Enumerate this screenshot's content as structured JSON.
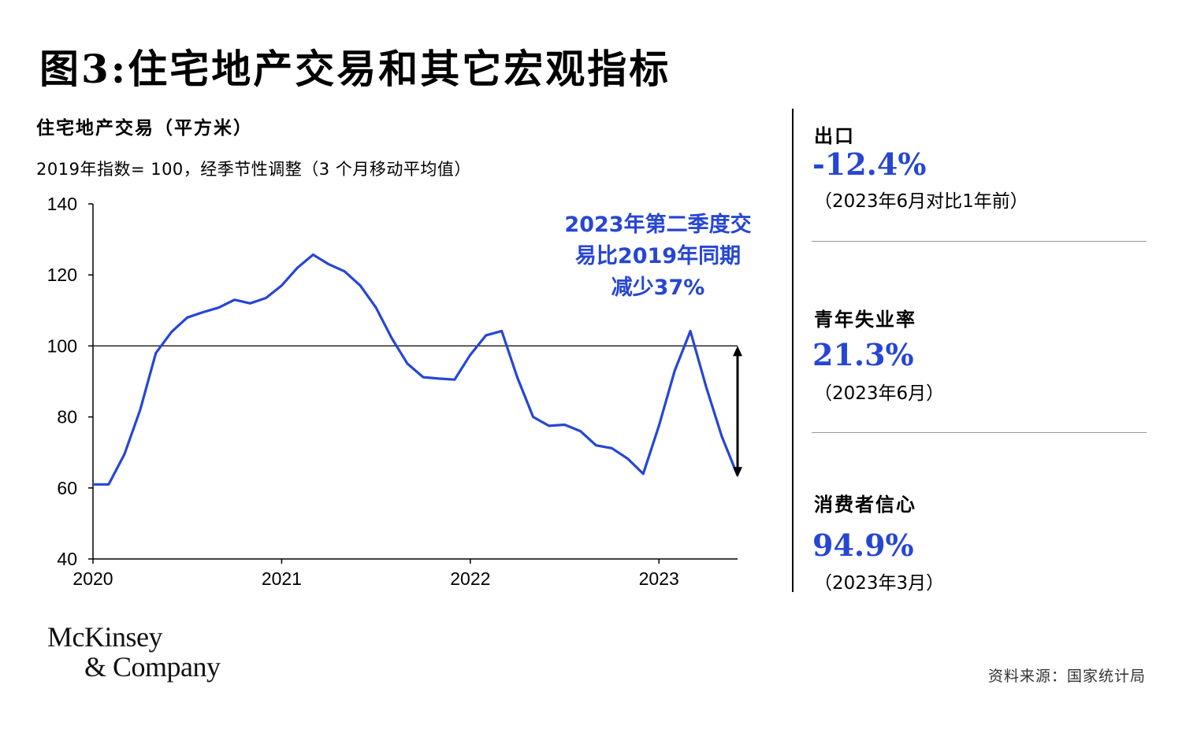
{
  "figure_title": "图3:住宅地产交易和其它宏观指标",
  "chart_data": {
    "type": "line",
    "title": "住宅地产交易（平方米）",
    "subtitle": "2019年指数= 100，经季节性调整（3 个月移动平均值）",
    "x_tick_labels": [
      "2020",
      "2021",
      "2022",
      "2023"
    ],
    "y_tick_labels": [
      "140",
      "120",
      "100",
      "80",
      "60",
      "40"
    ],
    "ylim": [
      40,
      140
    ],
    "xlim": [
      2020.0,
      2023.4167
    ],
    "reference_line": 100,
    "grid": false,
    "series": [
      {
        "color": "#2646d4",
        "x": [
          2020.0,
          2020.0833,
          2020.1667,
          2020.25,
          2020.3333,
          2020.4167,
          2020.5,
          2020.5833,
          2020.6667,
          2020.75,
          2020.8333,
          2020.9167,
          2021.0,
          2021.0833,
          2021.1667,
          2021.25,
          2021.3333,
          2021.4167,
          2021.5,
          2021.5833,
          2021.6667,
          2021.75,
          2021.8333,
          2021.9167,
          2022.0,
          2022.0833,
          2022.1667,
          2022.25,
          2022.3333,
          2022.4167,
          2022.5,
          2022.5833,
          2022.6667,
          2022.75,
          2022.8333,
          2022.9167,
          2023.0,
          2023.0833,
          2023.1667,
          2023.25,
          2023.3333,
          2023.4167
        ],
        "y": [
          61,
          61,
          69.5,
          82,
          98,
          104,
          108,
          109.5,
          110.8,
          113,
          112,
          113.5,
          117,
          122,
          125.7,
          123,
          121,
          117,
          110.8,
          102.2,
          95,
          91.2,
          90.8,
          90.5,
          97.5,
          103,
          104.2,
          91,
          80,
          77.5,
          77.8,
          76,
          72,
          71.2,
          68.3,
          64,
          77.5,
          93,
          104.2,
          88.5,
          74.5,
          63.5
        ]
      }
    ],
    "annotation": {
      "lines": [
        "2023年第二季度交",
        "易比2019年同期",
        "减少37%"
      ],
      "color": "#2646d4",
      "arrow_from": 100,
      "arrow_to": 63
    }
  },
  "indicators": [
    {
      "label": "出口",
      "value": "-12.4%",
      "note": "（2023年6月对比1年前）",
      "color": "#2646d4"
    },
    {
      "label": "青年失业率",
      "value": "21.3%",
      "note": "（2023年6月）",
      "color": "#2646d4"
    },
    {
      "label": "消费者信心",
      "value": "94.9%",
      "note": "（2023年3月）",
      "color": "#2646d4"
    }
  ],
  "logo": {
    "line1": "McKinsey",
    "line2": "& Company"
  },
  "source": "资料来源：国家统计局"
}
